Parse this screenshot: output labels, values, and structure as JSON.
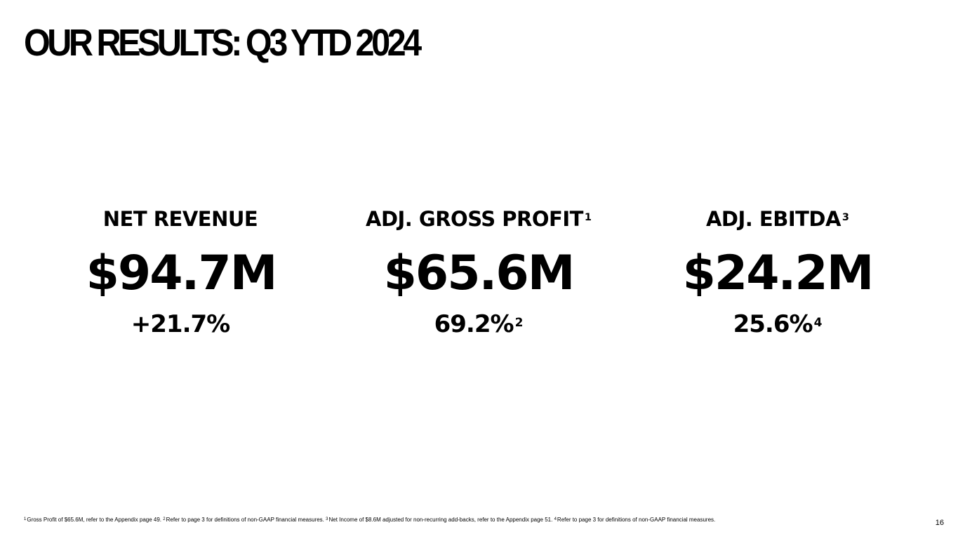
{
  "slide": {
    "title": "OUR RESULTS: Q3 YTD 2024",
    "page_number": "16"
  },
  "metrics": [
    {
      "label": "NET REVENUE",
      "label_ref": "",
      "value": "$94.7M",
      "sub": "+21.7%",
      "sub_ref": ""
    },
    {
      "label": "ADJ. GROSS PROFIT",
      "label_ref": "1",
      "value": "$65.6M",
      "sub": "69.2%",
      "sub_ref": "2"
    },
    {
      "label": "ADJ. EBITDA",
      "label_ref": "3",
      "value": "$24.2M",
      "sub": "25.6%",
      "sub_ref": "4"
    }
  ],
  "footnotes": [
    {
      "ref": "1",
      "text": "Gross Profit of $65.6M, refer to the Appendix page 49."
    },
    {
      "ref": "2",
      "text": "Refer to page 3 for definitions of non-GAAP financial measures."
    },
    {
      "ref": "3",
      "text": "Net Income of $8.6M adjusted for non-recurring add-backs, refer to the Appendix page 51."
    },
    {
      "ref": "4",
      "text": "Refer to page 3 for definitions of non-GAAP financial measures."
    }
  ]
}
